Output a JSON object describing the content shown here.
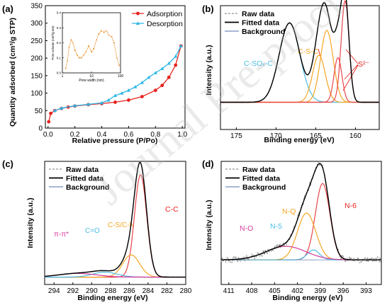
{
  "watermark": "Journal Pre-proof",
  "chart_data": [
    {
      "panel": "(a)",
      "type": "line",
      "xlabel": "Relative pressure (P/Po)",
      "ylabel": "Quantity adsorbed (cm³/g STP)",
      "xlim": [
        -0.02,
        1.02
      ],
      "ylim": [
        0,
        350
      ],
      "xticks": [
        0.0,
        0.2,
        0.4,
        0.6,
        0.8,
        1.0
      ],
      "xtick_labels": [
        "0.0",
        "0.2",
        "0.4",
        "0.6",
        "0.8",
        "1.0"
      ],
      "yticks": [
        0,
        50,
        100,
        150,
        200,
        250,
        300,
        350
      ],
      "legend_position": "top-right",
      "series": [
        {
          "name": "Adsorption",
          "color": "#e8221e",
          "marker": "circle",
          "x": [
            0.005,
            0.02,
            0.05,
            0.1,
            0.15,
            0.2,
            0.3,
            0.4,
            0.5,
            0.6,
            0.7,
            0.8,
            0.85,
            0.9,
            0.95,
            0.99
          ],
          "y": [
            18,
            42,
            50,
            56,
            60,
            63,
            67,
            70,
            74,
            80,
            90,
            108,
            122,
            145,
            180,
            235
          ]
        },
        {
          "name": "Desorption",
          "color": "#2db7e6",
          "marker": "triangle",
          "x": [
            0.99,
            0.95,
            0.9,
            0.85,
            0.8,
            0.75,
            0.7,
            0.65,
            0.6,
            0.55,
            0.5,
            0.45,
            0.4,
            0.3,
            0.2,
            0.1,
            0.05
          ],
          "y": [
            235,
            205,
            185,
            170,
            158,
            145,
            130,
            118,
            108,
            100,
            93,
            80,
            72,
            68,
            64,
            57,
            50
          ]
        }
      ],
      "inset": {
        "xlabel": "Pore width (nm)",
        "ylabel": "Pore volume (cm³/g nm)",
        "xscale": "log",
        "xlim": [
          1,
          100
        ],
        "xtick_labels": [
          "1",
          "10",
          "100"
        ],
        "ylim": [
          0,
          0.4
        ],
        "yticks": [
          0.0,
          0.1,
          0.2,
          0.3,
          0.4
        ],
        "ytick_labels": [
          "0.0",
          "0.1",
          "0.2",
          "0.3",
          "0.4"
        ],
        "series": [
          {
            "color": "#e88a1c",
            "x": [
              1.3,
              1.5,
              1.7,
              2.0,
              2.3,
              2.7,
              3.2,
              3.8,
              4.5,
              5.5,
              6.5,
              8,
              10,
              12,
              15,
              18,
              22,
              27,
              33,
              40,
              50,
              60,
              75,
              90
            ],
            "y": [
              0.03,
              0.08,
              0.17,
              0.22,
              0.2,
              0.15,
              0.12,
              0.1,
              0.1,
              0.12,
              0.14,
              0.18,
              0.14,
              0.16,
              0.22,
              0.26,
              0.28,
              0.27,
              0.28,
              0.25,
              0.24,
              0.2,
              0.1,
              0.05
            ]
          }
        ]
      }
    },
    {
      "panel": "(b)",
      "type": "line",
      "xlabel": "Binding energy (eV)",
      "ylabel": "Intensity (a.u.)",
      "xlim": [
        177,
        157
      ],
      "xticks": [
        175,
        170,
        165,
        160
      ],
      "xtick_labels": [
        "175",
        "170",
        "165",
        "160"
      ],
      "legend": [
        "Raw data",
        "Fitted data",
        "Background"
      ],
      "annotations": [
        "C-SOₓ-C",
        "C-S-C",
        "S²⁻"
      ],
      "background": 0.22,
      "peaks": [
        {
          "center": 168.3,
          "height": 0.64,
          "width": 1.3,
          "color": "#4bbde6"
        },
        {
          "center": 164.6,
          "height": 0.38,
          "width": 0.8,
          "color": "#f5a623"
        },
        {
          "center": 163.6,
          "height": 0.58,
          "width": 0.8,
          "color": "#f5a623"
        },
        {
          "center": 162.2,
          "height": 0.36,
          "width": 0.5,
          "color": "#e8454a"
        },
        {
          "center": 161.3,
          "height": 0.82,
          "width": 0.5,
          "color": "#e8454a"
        }
      ]
    },
    {
      "panel": "(c)",
      "type": "line",
      "xlabel": "Binding energy (eV)",
      "ylabel": "Intensity (a.u.)",
      "xlim": [
        295,
        280
      ],
      "xticks": [
        294,
        292,
        290,
        288,
        286,
        284,
        282,
        280
      ],
      "xtick_labels": [
        "294",
        "292",
        "290",
        "288",
        "286",
        "284",
        "282",
        "280"
      ],
      "legend": [
        "Raw data",
        "Fitted data",
        "Background"
      ],
      "annotations": [
        "C-C",
        "C-S/C-N",
        "C=O",
        "π-π*"
      ],
      "background": 0.06,
      "peaks": [
        {
          "center": 284.8,
          "height": 0.83,
          "width": 0.65,
          "color": "#e8454a"
        },
        {
          "center": 285.8,
          "height": 0.18,
          "width": 0.9,
          "color": "#f5a623"
        },
        {
          "center": 288.6,
          "height": 0.04,
          "width": 1.3,
          "color": "#4bbde6"
        },
        {
          "center": 291.5,
          "height": 0.03,
          "width": 2.0,
          "color": "#d63b9b"
        }
      ]
    },
    {
      "panel": "(d)",
      "type": "line",
      "xlabel": "Binding energy (eV)",
      "ylabel": "Intensity (a.u.)",
      "xlim": [
        412,
        391
      ],
      "xticks": [
        411,
        408,
        405,
        402,
        399,
        396,
        393
      ],
      "xtick_labels": [
        "411",
        "408",
        "405",
        "402",
        "399",
        "396",
        "393"
      ],
      "legend": [
        "Raw data",
        "Fitted data",
        "Background"
      ],
      "annotations": [
        "N-6",
        "N-Q",
        "N-5",
        "N-O"
      ],
      "background": 0.2,
      "peaks": [
        {
          "center": 398.7,
          "height": 0.62,
          "width": 0.95,
          "color": "#e8454a"
        },
        {
          "center": 400.8,
          "height": 0.38,
          "width": 1.2,
          "color": "#f5a623"
        },
        {
          "center": 399.9,
          "height": 0.08,
          "width": 0.8,
          "color": "#4bbde6"
        },
        {
          "center": 403.5,
          "height": 0.11,
          "width": 2.6,
          "color": "#d63b9b"
        }
      ]
    }
  ]
}
